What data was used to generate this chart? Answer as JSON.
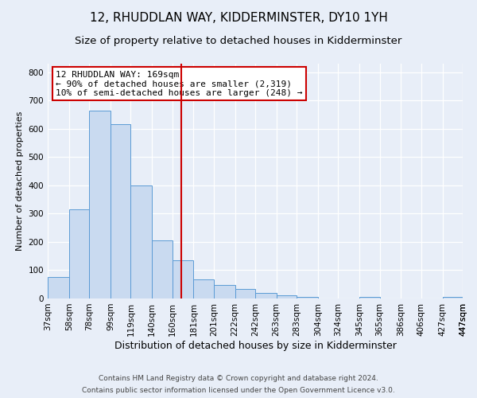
{
  "title": "12, RHUDDLAN WAY, KIDDERMINSTER, DY10 1YH",
  "subtitle": "Size of property relative to detached houses in Kidderminster",
  "xlabel": "Distribution of detached houses by size in Kidderminster",
  "ylabel": "Number of detached properties",
  "bin_edges": [
    37,
    58,
    78,
    99,
    119,
    140,
    160,
    181,
    201,
    222,
    242,
    263,
    283,
    304,
    324,
    345,
    365,
    386,
    406,
    427,
    447
  ],
  "bar_heights": [
    75,
    315,
    665,
    615,
    400,
    205,
    135,
    68,
    47,
    35,
    20,
    10,
    5,
    0,
    0,
    5,
    0,
    0,
    0,
    5
  ],
  "bar_color": "#c9daf0",
  "bar_edge_color": "#5b9bd5",
  "vline_x": 169,
  "vline_color": "#cc0000",
  "ylim": [
    0,
    830
  ],
  "yticks": [
    0,
    100,
    200,
    300,
    400,
    500,
    600,
    700,
    800
  ],
  "annotation_title": "12 RHUDDLAN WAY: 169sqm",
  "annotation_line1": "← 90% of detached houses are smaller (2,319)",
  "annotation_line2": "10% of semi-detached houses are larger (248) →",
  "annotation_box_facecolor": "#ffffff",
  "annotation_box_edgecolor": "#cc0000",
  "footer1": "Contains HM Land Registry data © Crown copyright and database right 2024.",
  "footer2": "Contains public sector information licensed under the Open Government Licence v3.0.",
  "bg_color": "#e8eef8",
  "plot_bg_color": "#e8eef8",
  "grid_color": "#ffffff",
  "title_fontsize": 11,
  "subtitle_fontsize": 9.5,
  "xlabel_fontsize": 9,
  "ylabel_fontsize": 8,
  "tick_fontsize": 7.5,
  "annot_fontsize": 8,
  "footer_fontsize": 6.5
}
